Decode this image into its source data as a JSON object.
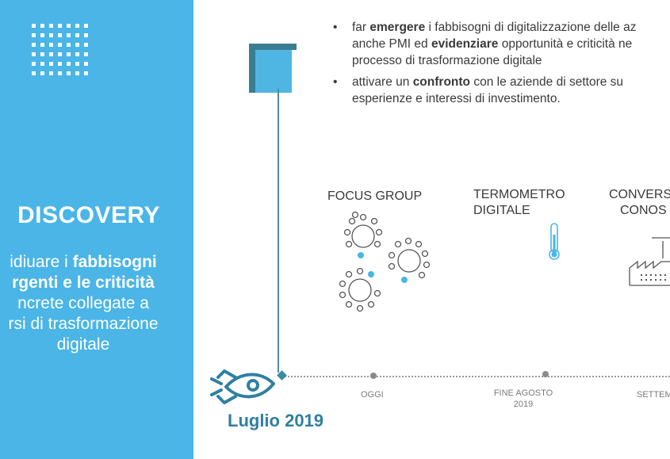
{
  "discovery": {
    "title": "DISCOVERY",
    "desc_part1": "idiuare i ",
    "desc_bold1": "fabbisogni",
    "desc_bold2": "rgenti e le criticità",
    "desc_line3": "ncrete collegate a",
    "desc_line4": "rsi di trasformazione",
    "desc_line5": "digitale"
  },
  "bullets": [
    {
      "marker": "•",
      "pre": "far ",
      "bold1": "emergere",
      "mid1": " i fabbisogni di digitalizzazione delle az",
      "line2_pre": "anche PMI ed ",
      "bold2": "evidenziare",
      "line2_post": " opportunità e criticità ne",
      "line3": "processo di trasformazione digitale"
    },
    {
      "marker": "•",
      "pre": "attivare un ",
      "bold1": "confronto",
      "mid1": " con le aziende di settore su",
      "line2": "esperienze e interessi di investimento."
    }
  ],
  "stages": {
    "focus_group": "FOCUS GROUP",
    "termometro_line1": "TERMOMETRO",
    "termometro_line2": "DIGITALE",
    "convers_line1": "CONVERS",
    "convers_line2": "CONOS"
  },
  "timeline": {
    "oggi": "OGGI",
    "fine_agosto_line1": "FINE AGOSTO",
    "fine_agosto_line2": "2019",
    "settem": "SETTEM",
    "start_label": "Luglio 2019"
  },
  "colors": {
    "panel": "#4ab5e6",
    "accent_dark": "#3a7d92",
    "accent_light": "#4fb6e4",
    "luglio": "#2f7fa3"
  }
}
